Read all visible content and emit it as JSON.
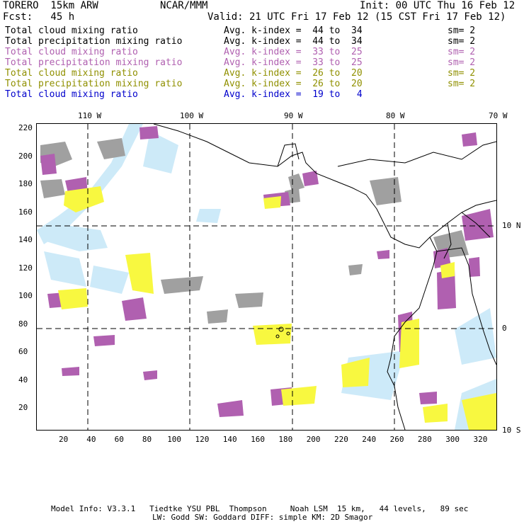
{
  "header": {
    "model": "TORERO  15km ARW",
    "org": "NCAR/MMM",
    "init": "Init: 00 UTC Thu 16 Feb 12",
    "fcst": "Fcst:   45 h",
    "valid": "Valid: 21 UTC Fri 17 Feb 12 (15 CST Fri 17 Feb 12)"
  },
  "legend": [
    {
      "field": "Total cloud mixing ratio",
      "kindex": "Avg. k-index =  44 to  34",
      "sm": "sm= 2",
      "color": "#000000"
    },
    {
      "field": "Total precipitation mixing ratio",
      "kindex": "Avg. k-index =  44 to  34",
      "sm": "sm= 2",
      "color": "#000000"
    },
    {
      "field": "Total cloud mixing ratio",
      "kindex": "Avg. k-index =  33 to  25",
      "sm": "sm= 2",
      "color": "#b060b0"
    },
    {
      "field": "Total precipitation mixing ratio",
      "kindex": "Avg. k-index =  33 to  25",
      "sm": "sm= 2",
      "color": "#b060b0"
    },
    {
      "field": "Total cloud mixing ratio",
      "kindex": "Avg. k-index =  26 to  20",
      "sm": "sm= 2",
      "color": "#909000"
    },
    {
      "field": "Total precipitation mixing ratio",
      "kindex": "Avg. k-index =  26 to  20",
      "sm": "sm= 2",
      "color": "#909000"
    },
    {
      "field": "Total cloud mixing ratio",
      "kindex": "Avg. k-index =  19 to   4",
      "sm": "",
      "color": "#0000cc"
    }
  ],
  "map": {
    "top_lon_labels": [
      "110 W",
      "100 W",
      "90 W",
      "80 W",
      "70 W"
    ],
    "right_lat_labels": [
      "10 N",
      "0",
      "10 S"
    ],
    "left_grid_labels": [
      "220",
      "200",
      "180",
      "160",
      "140",
      "120",
      "100",
      "80",
      "60",
      "40",
      "20"
    ],
    "bottom_grid_labels": [
      "20",
      "40",
      "60",
      "80",
      "100",
      "120",
      "140",
      "160",
      "180",
      "200",
      "220",
      "240",
      "260",
      "280",
      "300",
      "320"
    ],
    "colors": {
      "gray_cloud": "#a0a0a0",
      "purple_cloud": "#b060b0",
      "yellow_cloud": "#f8f840",
      "lightblue_cloud": "#c8e8f8",
      "coast": "#000000",
      "gridline": "#000000"
    }
  },
  "footer": {
    "line1": "Model Info: V3.3.1   Tiedtke YSU PBL  Thompson     Noah LSM  15 km,   44 levels,   89 sec",
    "line2": "LW: Godd SW: Goddard DIFF: simple KM: 2D Smagor"
  }
}
